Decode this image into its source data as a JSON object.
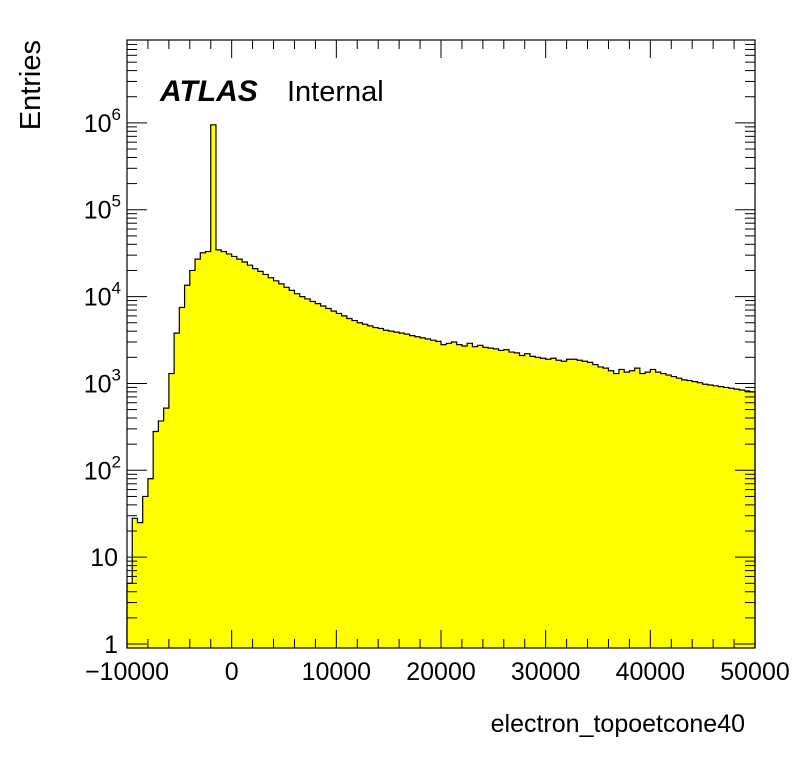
{
  "chart_data": {
    "type": "histogram",
    "title": "",
    "xlabel": "electron_topoetcone40",
    "ylabel": "Entries",
    "xlim": [
      -10000,
      50000
    ],
    "ylim": [
      0.9,
      9000000
    ],
    "yscale": "log",
    "grid": false,
    "fill_color": "#ffff00",
    "line_color": "#000000",
    "label": {
      "experiment": "ATLAS",
      "status": "Internal"
    },
    "x_tick_labels": [
      "−10000",
      "0",
      "10000",
      "20000",
      "30000",
      "40000",
      "50000"
    ],
    "y_tick_labels": [
      {
        "value": 1,
        "base": "1",
        "exp": ""
      },
      {
        "value": 10,
        "base": "10",
        "exp": ""
      },
      {
        "value": 100,
        "base": "10",
        "exp": "2"
      },
      {
        "value": 1000,
        "base": "10",
        "exp": "3"
      },
      {
        "value": 10000,
        "base": "10",
        "exp": "4"
      },
      {
        "value": 100000,
        "base": "10",
        "exp": "5"
      },
      {
        "value": 1000000,
        "base": "10",
        "exp": "6"
      }
    ],
    "bin_width": 500,
    "x_start": -10000,
    "values": [
      5,
      28,
      25,
      50,
      80,
      280,
      370,
      520,
      1300,
      3800,
      7500,
      13500,
      20000,
      27000,
      32000,
      33000,
      950000,
      34500,
      33000,
      31000,
      29000,
      27000,
      25000,
      23000,
      21000,
      19500,
      18000,
      16500,
      15200,
      14000,
      12800,
      11800,
      10800,
      10000,
      9400,
      8800,
      8300,
      7800,
      7300,
      6800,
      6400,
      6000,
      5600,
      5300,
      5000,
      4800,
      4600,
      4400,
      4300,
      4100,
      4000,
      3900,
      3800,
      3700,
      3550,
      3450,
      3350,
      3250,
      3150,
      3050,
      2800,
      2900,
      3000,
      2800,
      2700,
      2900,
      2650,
      2750,
      2600,
      2550,
      2500,
      2400,
      2450,
      2300,
      2250,
      2100,
      2200,
      2050,
      2000,
      1950,
      1900,
      1950,
      1850,
      1800,
      1900,
      1900,
      1850,
      1800,
      1750,
      1650,
      1550,
      1500,
      1400,
      1300,
      1450,
      1350,
      1400,
      1500,
      1300,
      1350,
      1450,
      1350,
      1300,
      1250,
      1200,
      1150,
      1100,
      1080,
      1050,
      1020,
      980,
      960,
      940,
      920,
      900,
      880,
      860,
      840,
      820,
      800
    ]
  }
}
